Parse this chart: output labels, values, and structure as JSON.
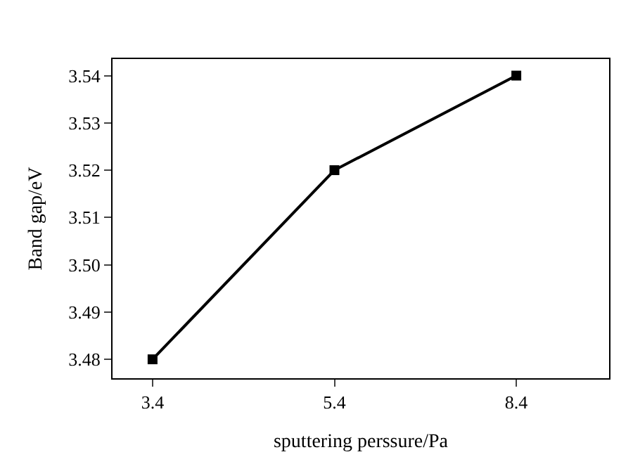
{
  "chart_data": {
    "type": "line",
    "xlabel": "sputtering perssure/Pa",
    "ylabel": "Band gap/eV",
    "categories": [
      "3.4",
      "5.4",
      "8.4"
    ],
    "series": [
      {
        "color": "#000000",
        "values": [
          3.48,
          3.52,
          3.54
        ]
      }
    ],
    "ylim": [
      3.476,
      3.5435
    ],
    "yticks": [
      3.48,
      3.49,
      {
        "value": 3.5,
        "label": "3.50"
      },
      3.51,
      3.52,
      3.53,
      3.54
    ],
    "marker": "square",
    "line_style": "solid"
  }
}
